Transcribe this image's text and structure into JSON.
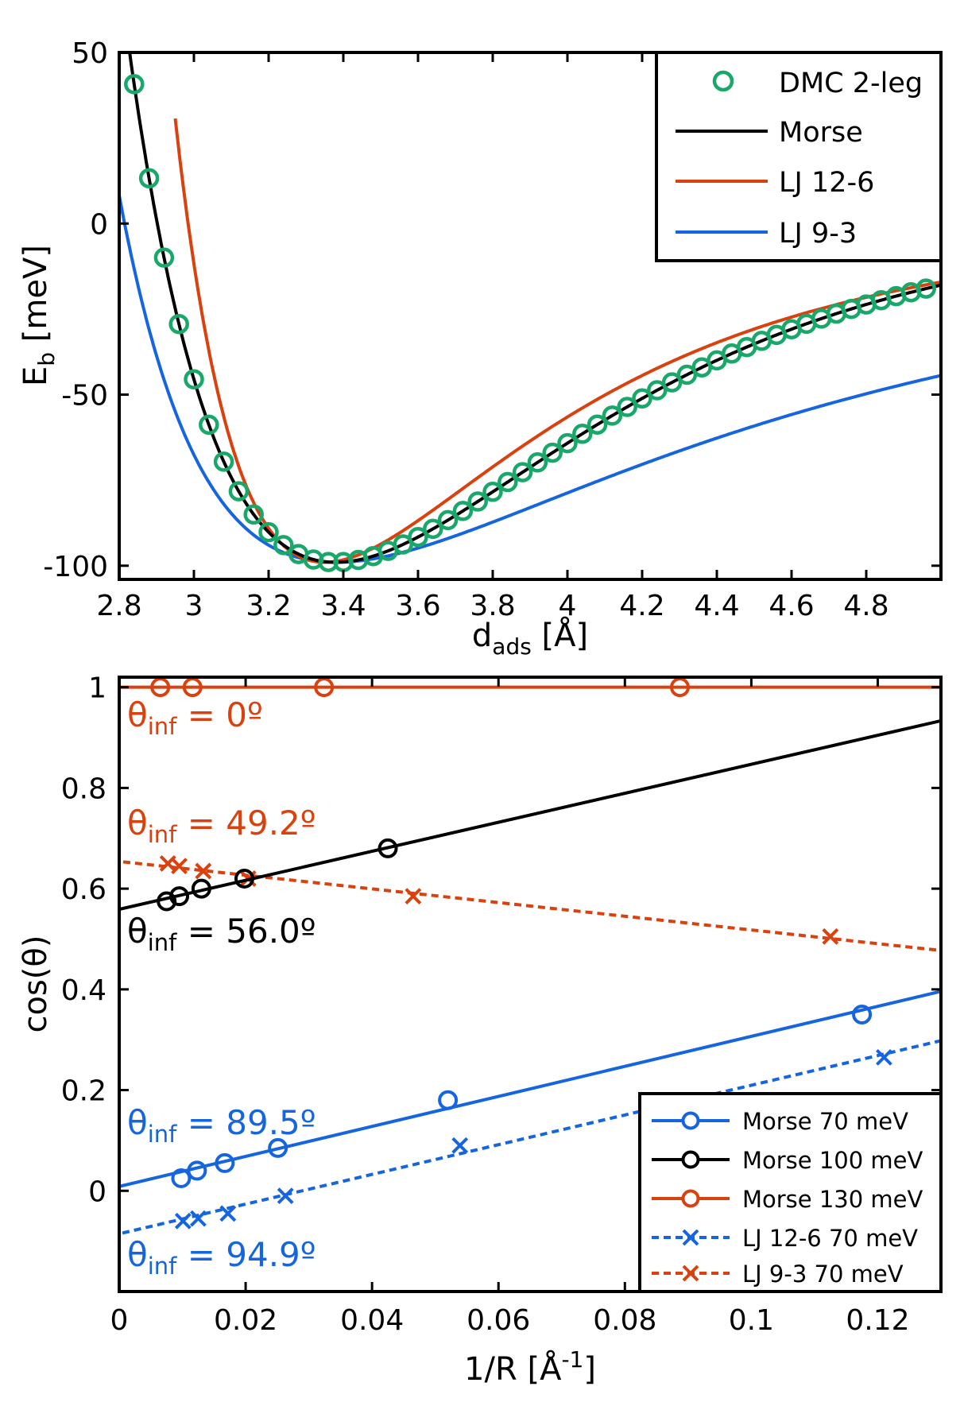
{
  "chart_data": [
    {
      "type": "line",
      "title": "",
      "xlabel_main": "d",
      "xlabel_sub": "ads",
      "xlabel_unit": " [Å]",
      "ylabel_main": "E",
      "ylabel_sub": "b",
      "ylabel_unit": " [meV]",
      "xlim": [
        2.8,
        5.0
      ],
      "ylim": [
        -104,
        50
      ],
      "xticks": [
        2.8,
        3.0,
        3.2,
        3.4,
        3.6,
        3.8,
        4.0,
        4.2,
        4.4,
        4.6,
        4.8
      ],
      "xtick_labels": [
        "2.8",
        "3",
        "3.2",
        "3.4",
        "3.6",
        "3.8",
        "4",
        "4.2",
        "4.4",
        "4.6",
        "4.8"
      ],
      "yticks": [
        50,
        0,
        -50,
        -100
      ],
      "ytick_labels": [
        "50",
        "0",
        "-50",
        "-100"
      ],
      "legend": {
        "position": "top-right",
        "entries": [
          "DMC 2-leg",
          "Morse",
          "LJ 12-6",
          "LJ 9-3"
        ]
      },
      "colors": {
        "dmc": "#1aa86a",
        "morse": "#000000",
        "lj126": "#d9410e",
        "lj93": "#1565e0"
      },
      "series": [
        {
          "name": "DMC 2-leg",
          "marker": "circle",
          "x_start": 2.8,
          "x_end": 4.98,
          "dx": 0.04,
          "params": {
            "De": 99,
            "r0": 3.38,
            "a": 1.45
          }
        },
        {
          "name": "Morse",
          "params": {
            "De": 99,
            "r0": 3.38,
            "a": 1.45
          }
        },
        {
          "name": "LJ 12-6",
          "params": {
            "eps": 99,
            "rm": 3.35
          }
        },
        {
          "name": "LJ 9-3",
          "params": {
            "eps": 99,
            "r0": 3.38
          }
        }
      ]
    },
    {
      "type": "scatter",
      "title": "",
      "xlabel_main": "1/R [Å",
      "xlabel_sup": "-1",
      "xlabel_close": "]",
      "ylabel": "cos(θ)",
      "xlim": [
        0,
        0.13
      ],
      "ylim": [
        -0.2,
        1.02
      ],
      "xticks": [
        0,
        0.02,
        0.04,
        0.06,
        0.08,
        0.1,
        0.12
      ],
      "xtick_labels": [
        "0",
        "0.02",
        "0.04",
        "0.06",
        "0.08",
        "0.1",
        "0.12"
      ],
      "yticks": [
        0,
        0.2,
        0.4,
        0.6,
        0.8,
        1.0
      ],
      "ytick_labels": [
        "0",
        "0.2",
        "0.4",
        "0.6",
        "0.8",
        "1"
      ],
      "legend": {
        "position": "bottom-right",
        "entries": [
          "Morse 70 meV",
          "Morse 100 meV",
          "Morse 130 meV",
          "LJ 12-6 70 meV",
          "LJ 9-3 70 meV"
        ]
      },
      "series": [
        {
          "name": "Morse 70 meV",
          "color": "#1565e0",
          "marker": "circle",
          "dash": false,
          "x": [
            0.0098,
            0.0123,
            0.0167,
            0.0251,
            0.052,
            0.1175
          ],
          "y": [
            0.025,
            0.04,
            0.055,
            0.085,
            0.18,
            0.35
          ],
          "fit": [
            0.0087,
            2.98
          ]
        },
        {
          "name": "Morse 100 meV",
          "color": "#000000",
          "marker": "circle",
          "dash": false,
          "x": [
            0.0075,
            0.0095,
            0.013,
            0.0198,
            0.0425
          ],
          "y": [
            0.575,
            0.585,
            0.6,
            0.62,
            0.68
          ],
          "fit": [
            0.559,
            2.88
          ]
        },
        {
          "name": "Morse 130 meV",
          "color": "#d9410e",
          "marker": "circle",
          "dash": false,
          "x": [
            0.0065,
            0.0116,
            0.0324,
            0.0887
          ],
          "y": [
            1.0,
            1.0,
            1.0,
            1.0
          ],
          "fit": [
            1.0,
            0.0
          ]
        },
        {
          "name": "LJ 12-6 70 meV",
          "color": "#1565e0",
          "marker": "x",
          "dash": true,
          "x": [
            0.0101,
            0.0125,
            0.0172,
            0.0263,
            0.0539,
            0.121
          ],
          "y": [
            -0.06,
            -0.055,
            -0.045,
            -0.01,
            0.09,
            0.265
          ],
          "fit": [
            -0.0854,
            2.95
          ]
        },
        {
          "name": "LJ 9-3 70 meV",
          "color": "#d9410e",
          "marker": "x",
          "dash": true,
          "x": [
            0.0077,
            0.0095,
            0.0133,
            0.0204,
            0.0465,
            0.1125
          ],
          "y": [
            0.65,
            0.645,
            0.635,
            0.62,
            0.585,
            0.505
          ],
          "fit": [
            0.654,
            -1.36
          ]
        }
      ],
      "annotations": [
        {
          "main": "θ",
          "sub": "inf",
          "rest": " = 0º",
          "color": "#d9410e"
        },
        {
          "main": "θ",
          "sub": "inf",
          "rest": " = 49.2º",
          "color": "#d9410e"
        },
        {
          "main": "θ",
          "sub": "inf",
          "rest": " = 56.0º",
          "color": "#000000"
        },
        {
          "main": "θ",
          "sub": "inf",
          "rest": " = 89.5º",
          "color": "#1565e0"
        },
        {
          "main": "θ",
          "sub": "inf",
          "rest": " = 94.9º",
          "color": "#1565e0"
        }
      ]
    }
  ]
}
